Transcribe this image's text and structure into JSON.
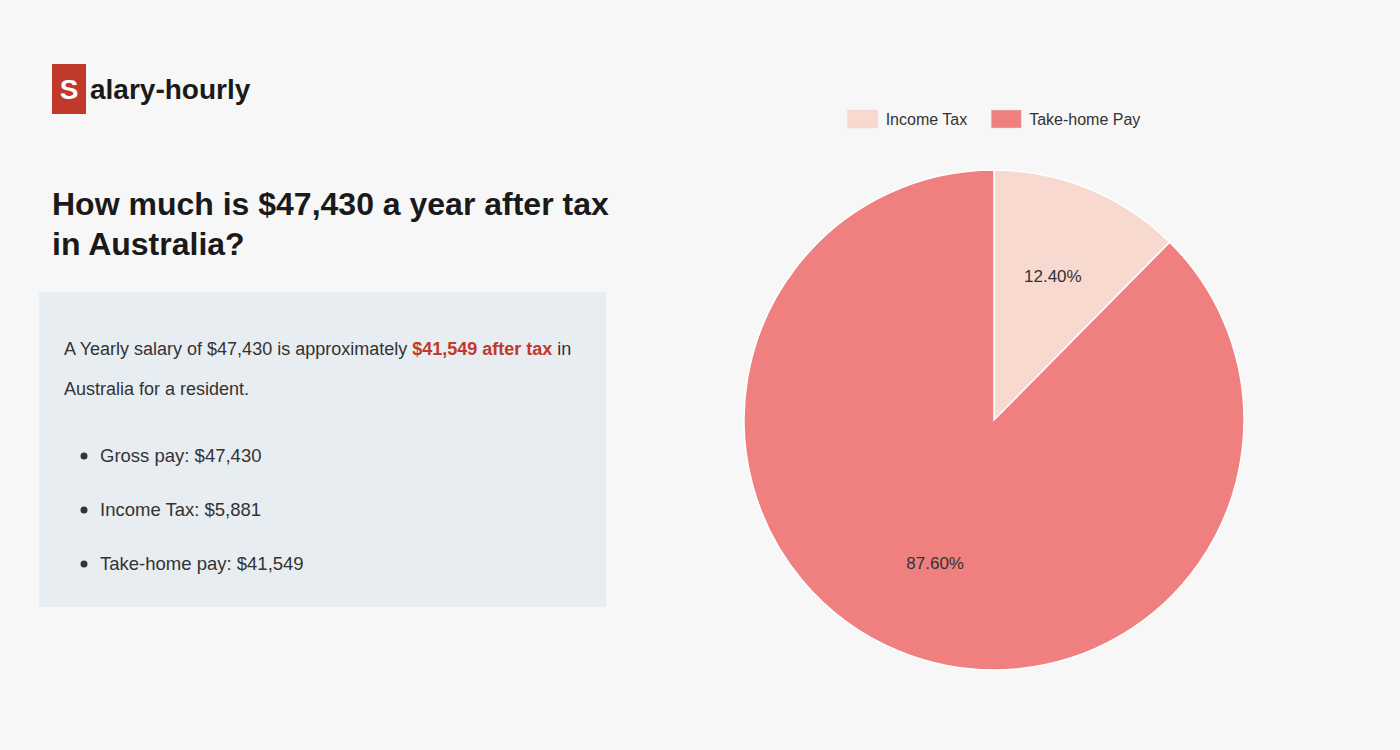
{
  "chart_data": {
    "type": "pie",
    "title": "How much is $47,430 a year after tax in Australia?",
    "categories": [
      "Income Tax",
      "Take-home Pay"
    ],
    "values": [
      12.4,
      87.6
    ],
    "value_labels": [
      "12.40%",
      "87.60%"
    ],
    "colors": [
      "#f7d9d0",
      "#f08080"
    ],
    "data_labels": true,
    "legend": "top",
    "annotations": [
      {
        "text": "S",
        "color": "#c0392b"
      },
      {
        "text": "alary-hourly"
      },
      {
        "text": "A Yearly salary of $47,430 is approximately "
      },
      {
        "text": "$41,549 after tax",
        "color": "#c0392b"
      },
      {
        "text": " in"
      },
      {
        "text": "Australia for a resident."
      },
      {
        "text": "Gross pay: $47,430"
      },
      {
        "text": "Income Tax: $5,881"
      },
      {
        "text": "Take-home pay: $41,549"
      }
    ]
  }
}
